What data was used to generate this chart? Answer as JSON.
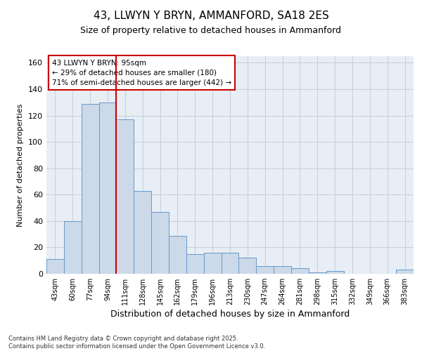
{
  "title_line1": "43, LLWYN Y BRYN, AMMANFORD, SA18 2ES",
  "title_line2": "Size of property relative to detached houses in Ammanford",
  "xlabel": "Distribution of detached houses by size in Ammanford",
  "ylabel": "Number of detached properties",
  "footnote1": "Contains HM Land Registry data © Crown copyright and database right 2025.",
  "footnote2": "Contains public sector information licensed under the Open Government Licence v3.0.",
  "categories": [
    "43sqm",
    "60sqm",
    "77sqm",
    "94sqm",
    "111sqm",
    "128sqm",
    "145sqm",
    "162sqm",
    "179sqm",
    "196sqm",
    "213sqm",
    "230sqm",
    "247sqm",
    "264sqm",
    "281sqm",
    "298sqm",
    "315sqm",
    "332sqm",
    "349sqm",
    "366sqm",
    "383sqm"
  ],
  "values": [
    11,
    40,
    129,
    130,
    117,
    63,
    47,
    29,
    15,
    16,
    16,
    12,
    6,
    6,
    4,
    1,
    2,
    0,
    0,
    0,
    3
  ],
  "bar_color": "#ccd9e8",
  "bar_edge_color": "#6699cc",
  "annotation_line1": "43 LLWYN Y BRYN: 95sqm",
  "annotation_line2": "← 29% of detached houses are smaller (180)",
  "annotation_line3": "71% of semi-detached houses are larger (442) →",
  "annotation_box_color": "#cc0000",
  "vline_color": "#cc0000",
  "vline_x": 3.5,
  "ylim": [
    0,
    165
  ],
  "yticks": [
    0,
    20,
    40,
    60,
    80,
    100,
    120,
    140,
    160
  ],
  "grid_color": "#c8d0dc",
  "background_color": "#ffffff",
  "plot_bg_color": "#e8eef5"
}
